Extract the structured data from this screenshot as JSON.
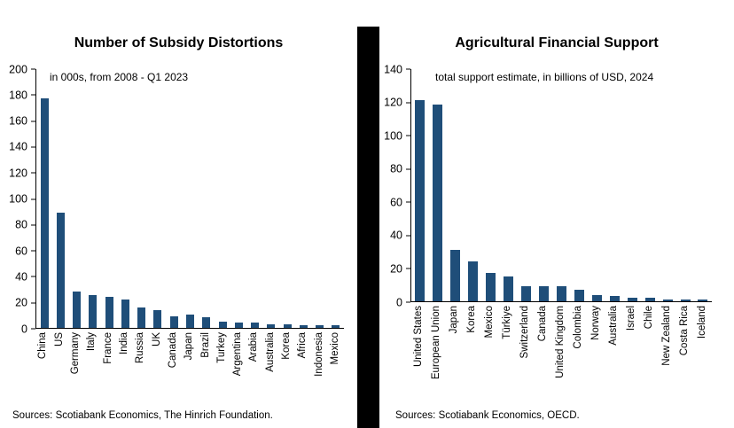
{
  "accent_color": "#1F4E79",
  "chart_data": [
    {
      "type": "bar",
      "title": "Number of Subsidy Distortions",
      "annotation": "in 000s,  from 2008 - Q1 2023",
      "categories": [
        "China",
        "US",
        "Germany",
        "Italy",
        "France",
        "India",
        "Russia",
        "UK",
        "Canada",
        "Japan",
        "Brazil",
        "Turkey",
        "Argentina",
        "Arabia",
        "Australia",
        "Korea",
        "Africa",
        "Indonesia",
        "Mexico"
      ],
      "values": [
        177,
        89,
        28,
        25,
        24,
        22,
        16,
        14,
        9,
        10,
        8,
        5,
        4,
        4,
        3,
        3,
        2,
        2,
        2
      ],
      "xlabel": "",
      "ylabel": "",
      "ylim": [
        0,
        200
      ],
      "ytick_step": 20,
      "grid": false,
      "legend": "none",
      "bar_color": "#1F4E79",
      "source": "Sources: Scotiabank Economics, The Hinrich Foundation."
    },
    {
      "type": "bar",
      "title": "Agricultural Financial Support",
      "annotation": "total support estimate, in billions of USD, 2024",
      "categories": [
        "United States",
        "European Union",
        "Japan",
        "Korea",
        "Mexico",
        "Türkiye",
        "Switzerland",
        "Canada",
        "United Kingdom",
        "Colombia",
        "Norway",
        "Australia",
        "Israel",
        "Chile",
        "New Zealand",
        "Costa Rica",
        "Iceland"
      ],
      "values": [
        121,
        118,
        31,
        24,
        17,
        15,
        9,
        9,
        9,
        7,
        4,
        3,
        2,
        2,
        1,
        1,
        1
      ],
      "xlabel": "",
      "ylabel": "",
      "ylim": [
        0,
        140
      ],
      "ytick_step": 20,
      "grid": false,
      "legend": "none",
      "bar_color": "#1F4E79",
      "source": "Sources: Scotiabank Economics, OECD."
    }
  ]
}
